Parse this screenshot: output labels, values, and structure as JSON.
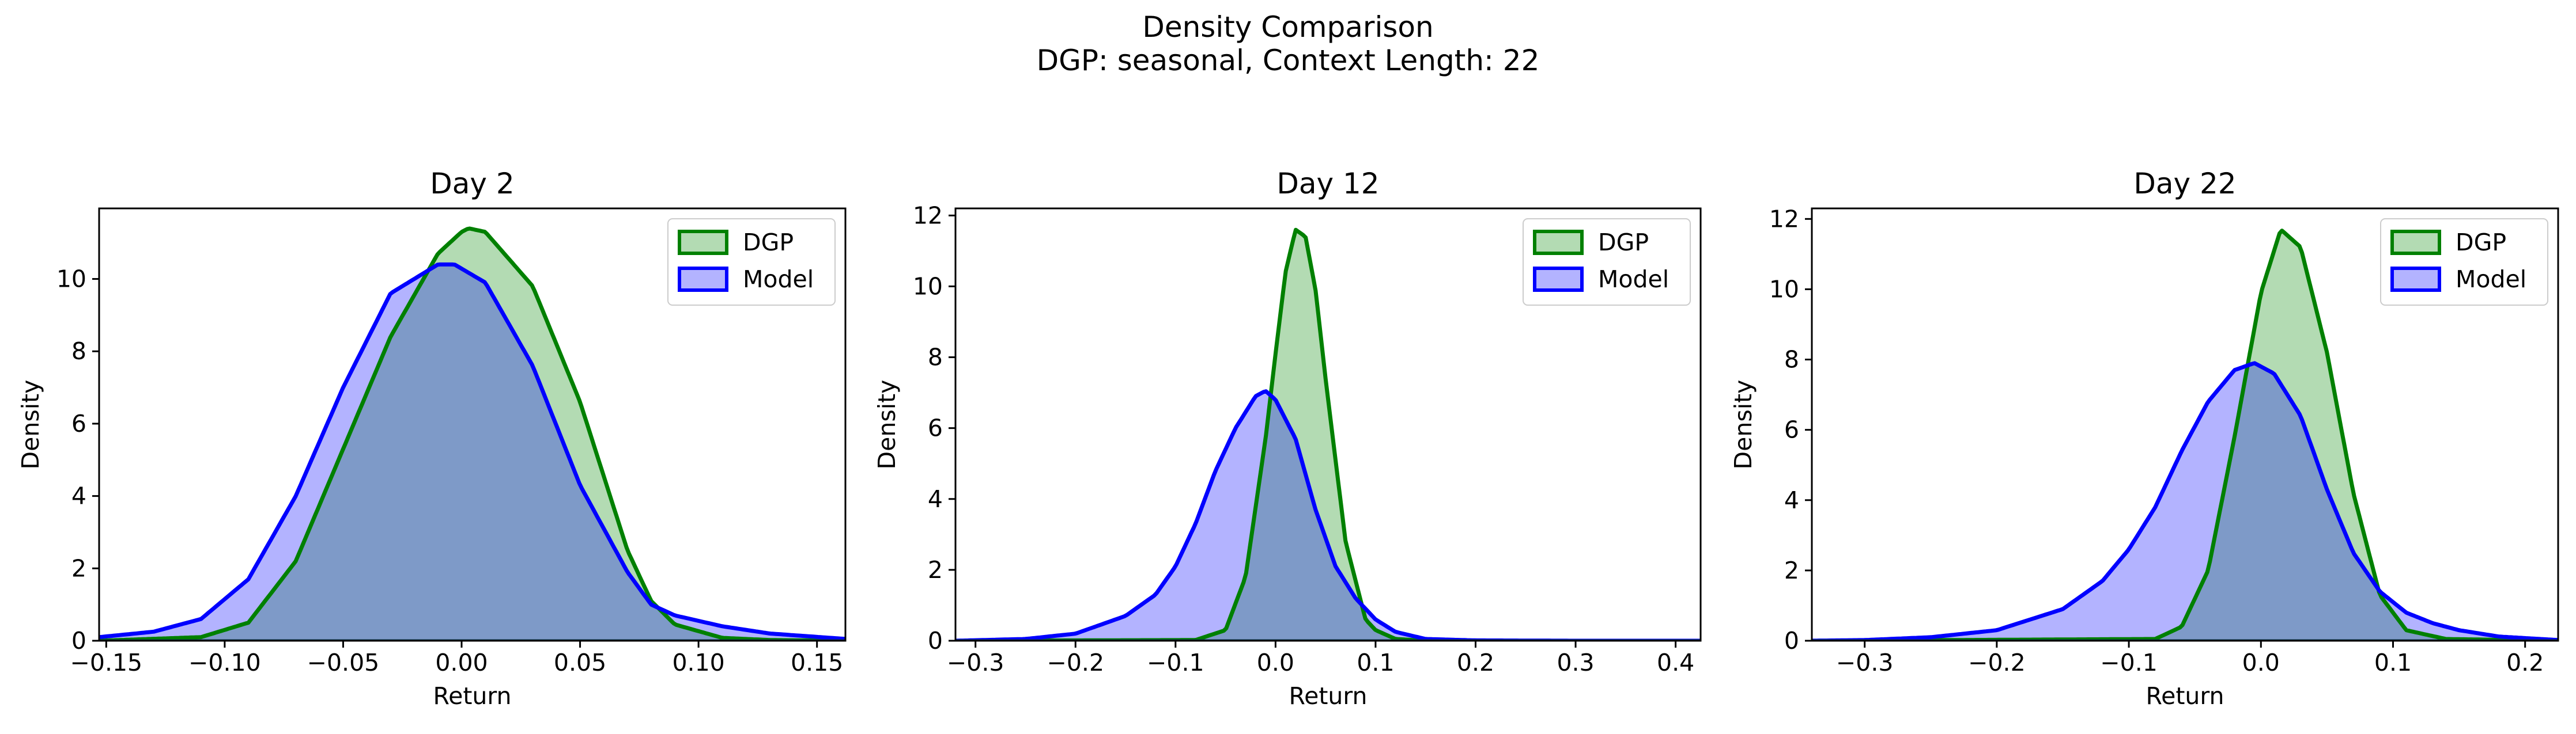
{
  "figure": {
    "title": "Density Comparison",
    "subtitle": "DGP: seasonal, Context Length: 22"
  },
  "colors": {
    "dgp_line": "#008000",
    "dgp_fill": "#b3dbb3",
    "model_line": "#0000ff",
    "model_fill": "#b3b3ff",
    "overlap_fill": "#7e9ac8"
  },
  "chart_data": [
    {
      "type": "area",
      "title": "Day 2",
      "xlabel": "Return",
      "ylabel": "Density",
      "xlim": [
        -0.153,
        0.162
      ],
      "ylim": [
        0,
        11.95
      ],
      "xticks": [
        -0.15,
        -0.1,
        -0.05,
        0.0,
        0.05,
        0.1,
        0.15
      ],
      "xtick_labels": [
        "−0.15",
        "−0.10",
        "−0.05",
        "0.00",
        "0.05",
        "0.10",
        "0.15"
      ],
      "yticks": [
        0,
        2,
        4,
        6,
        8,
        10
      ],
      "ytick_labels": [
        "0",
        "2",
        "4",
        "6",
        "8",
        "10"
      ],
      "legend": "top-right",
      "series": [
        {
          "name": "DGP",
          "color": "#008000",
          "x": [
            -0.153,
            -0.11,
            -0.09,
            -0.07,
            -0.05,
            -0.03,
            -0.01,
            0.0,
            0.003,
            0.01,
            0.03,
            0.05,
            0.07,
            0.08,
            0.09,
            0.11,
            0.13,
            0.162
          ],
          "y": [
            0,
            0.1,
            0.5,
            2.2,
            5.3,
            8.4,
            10.7,
            11.3,
            11.4,
            11.3,
            9.8,
            6.6,
            2.5,
            1.1,
            0.45,
            0.08,
            0.02,
            0
          ]
        },
        {
          "name": "Model",
          "color": "#0000ff",
          "x": [
            -0.153,
            -0.13,
            -0.11,
            -0.09,
            -0.07,
            -0.05,
            -0.03,
            -0.01,
            -0.003,
            0.01,
            0.03,
            0.05,
            0.07,
            0.08,
            0.09,
            0.11,
            0.13,
            0.162
          ],
          "y": [
            0.1,
            0.25,
            0.6,
            1.7,
            4.0,
            7.0,
            9.6,
            10.4,
            10.4,
            9.9,
            7.6,
            4.3,
            1.9,
            1.0,
            0.7,
            0.4,
            0.2,
            0.05
          ]
        }
      ]
    },
    {
      "type": "area",
      "title": "Day 12",
      "xlabel": "Return",
      "ylabel": "Density",
      "xlim": [
        -0.32,
        0.425
      ],
      "ylim": [
        0,
        12.2
      ],
      "xticks": [
        -0.3,
        -0.2,
        -0.1,
        0.0,
        0.1,
        0.2,
        0.3,
        0.4
      ],
      "xtick_labels": [
        "−0.3",
        "−0.2",
        "−0.1",
        "0.0",
        "0.1",
        "0.2",
        "0.3",
        "0.4"
      ],
      "yticks": [
        0,
        2,
        4,
        6,
        8,
        10,
        12
      ],
      "ytick_labels": [
        "0",
        "2",
        "4",
        "6",
        "8",
        "10",
        "12"
      ],
      "legend": "top-right",
      "series": [
        {
          "name": "DGP",
          "color": "#008000",
          "x": [
            -0.32,
            -0.08,
            -0.05,
            -0.03,
            -0.01,
            0.0,
            0.01,
            0.02,
            0.03,
            0.04,
            0.05,
            0.07,
            0.09,
            0.1,
            0.12,
            0.15,
            0.425
          ],
          "y": [
            0,
            0.02,
            0.3,
            1.8,
            5.7,
            8.1,
            10.4,
            11.6,
            11.4,
            9.9,
            7.4,
            2.8,
            0.6,
            0.3,
            0.05,
            0,
            0
          ]
        },
        {
          "name": "Model",
          "color": "#0000ff",
          "x": [
            -0.32,
            -0.25,
            -0.2,
            -0.15,
            -0.12,
            -0.1,
            -0.08,
            -0.06,
            -0.04,
            -0.02,
            -0.01,
            0.0,
            0.02,
            0.04,
            0.06,
            0.08,
            0.1,
            0.12,
            0.15,
            0.2,
            0.3,
            0.425
          ],
          "y": [
            0,
            0.05,
            0.2,
            0.7,
            1.3,
            2.1,
            3.3,
            4.8,
            6.0,
            6.9,
            7.05,
            6.8,
            5.7,
            3.7,
            2.1,
            1.2,
            0.6,
            0.25,
            0.05,
            0.01,
            0,
            0
          ]
        }
      ]
    },
    {
      "type": "area",
      "title": "Day 22",
      "xlabel": "Return",
      "ylabel": "Density",
      "xlim": [
        -0.34,
        0.225
      ],
      "ylim": [
        0,
        12.3
      ],
      "xticks": [
        -0.3,
        -0.2,
        -0.1,
        0.0,
        0.1,
        0.2
      ],
      "xtick_labels": [
        "−0.3",
        "−0.2",
        "−0.1",
        "0.0",
        "0.1",
        "0.2"
      ],
      "yticks": [
        0,
        2,
        4,
        6,
        8,
        10,
        12
      ],
      "ytick_labels": [
        "0",
        "2",
        "4",
        "6",
        "8",
        "10",
        "12"
      ],
      "legend": "top-right",
      "series": [
        {
          "name": "DGP",
          "color": "#008000",
          "x": [
            -0.34,
            -0.08,
            -0.06,
            -0.04,
            -0.02,
            0.0,
            0.015,
            0.03,
            0.05,
            0.07,
            0.09,
            0.11,
            0.14,
            0.225
          ],
          "y": [
            0,
            0.05,
            0.4,
            2.0,
            5.8,
            9.9,
            11.7,
            11.2,
            8.2,
            4.2,
            1.3,
            0.3,
            0.05,
            0
          ]
        },
        {
          "name": "Model",
          "color": "#0000ff",
          "x": [
            -0.34,
            -0.3,
            -0.25,
            -0.2,
            -0.15,
            -0.12,
            -0.1,
            -0.08,
            -0.06,
            -0.04,
            -0.02,
            -0.005,
            0.01,
            0.03,
            0.05,
            0.07,
            0.09,
            0.11,
            0.13,
            0.15,
            0.18,
            0.225
          ],
          "y": [
            0,
            0.02,
            0.1,
            0.3,
            0.9,
            1.7,
            2.6,
            3.8,
            5.4,
            6.8,
            7.7,
            7.9,
            7.6,
            6.4,
            4.3,
            2.5,
            1.4,
            0.8,
            0.5,
            0.3,
            0.12,
            0.02
          ]
        }
      ]
    }
  ]
}
